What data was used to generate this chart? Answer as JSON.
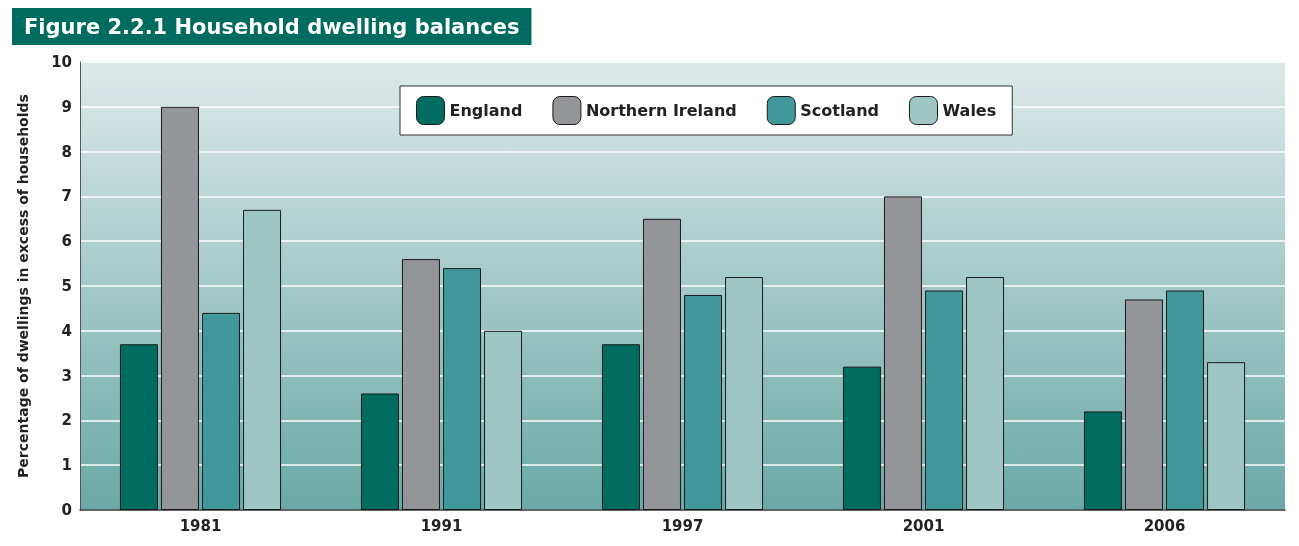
{
  "chart_data": {
    "type": "bar",
    "title": "Figure 2.2.1 Household dwelling balances",
    "ylabel": "Percentage of dwellings in excess of households",
    "categories": [
      "1981",
      "1991",
      "1997",
      "2001",
      "2006"
    ],
    "series": [
      {
        "name": "England",
        "color": "#006b5f",
        "values": [
          3.7,
          2.6,
          3.7,
          3.2,
          2.2
        ]
      },
      {
        "name": "Northern Ireland",
        "color": "#939598",
        "values": [
          9.0,
          5.6,
          6.5,
          7.0,
          4.7
        ]
      },
      {
        "name": "Scotland",
        "color": "#41989a",
        "values": [
          4.4,
          5.4,
          4.8,
          4.9,
          4.9
        ]
      },
      {
        "name": "Wales",
        "color": "#9ec7c4",
        "values": [
          6.7,
          4.0,
          5.2,
          5.2,
          3.3
        ]
      }
    ],
    "ylim": [
      0,
      10
    ],
    "yticks": [
      0,
      1,
      2,
      3,
      4,
      5,
      6,
      7,
      8,
      9,
      10
    ],
    "grid": "y",
    "legend": "top"
  }
}
